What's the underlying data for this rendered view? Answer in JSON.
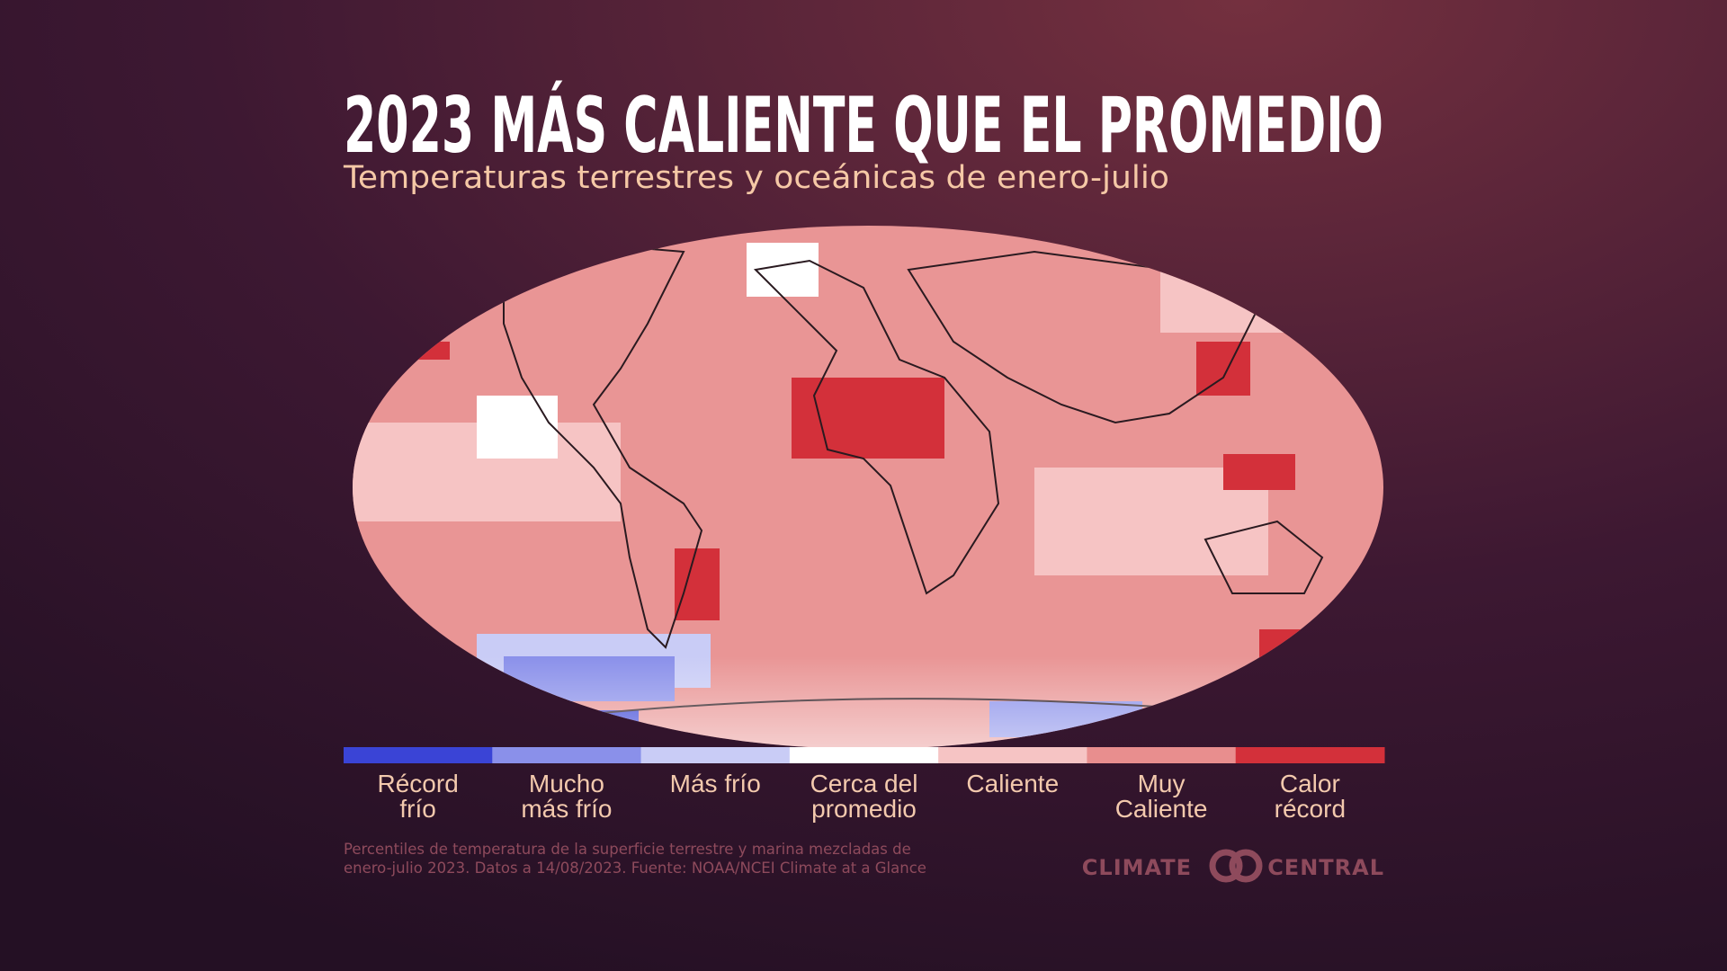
{
  "header": {
    "title": "2023 MÁS CALIENTE QUE EL PROMEDIO",
    "subtitle": "Temperaturas terrestres y oceánicas de enero-julio"
  },
  "legend": [
    {
      "lines": [
        "Récord",
        "frío"
      ],
      "color": "#3a44d6"
    },
    {
      "lines": [
        "Mucho",
        "más frío"
      ],
      "color": "#8a90ea"
    },
    {
      "lines": [
        "Más frío"
      ],
      "color": "#c9ccf6"
    },
    {
      "lines": [
        "Cerca del",
        "promedio"
      ],
      "color": "#ffffff"
    },
    {
      "lines": [
        "Caliente"
      ],
      "color": "#f6c4c4"
    },
    {
      "lines": [
        "Muy",
        "Caliente"
      ],
      "color": "#e88e8e"
    },
    {
      "lines": [
        "Calor",
        "récord"
      ],
      "color": "#d3303a"
    }
  ],
  "footnote": [
    "Percentiles de temperatura de la superficie terrestre y marina mezcladas de",
    "enero-julio 2023. Datos a 14/08/2023. Fuente: NOAA/NCEI Climate at a Glance"
  ],
  "logo": {
    "left": "CLIMATE",
    "right": "CENTRAL"
  }
}
